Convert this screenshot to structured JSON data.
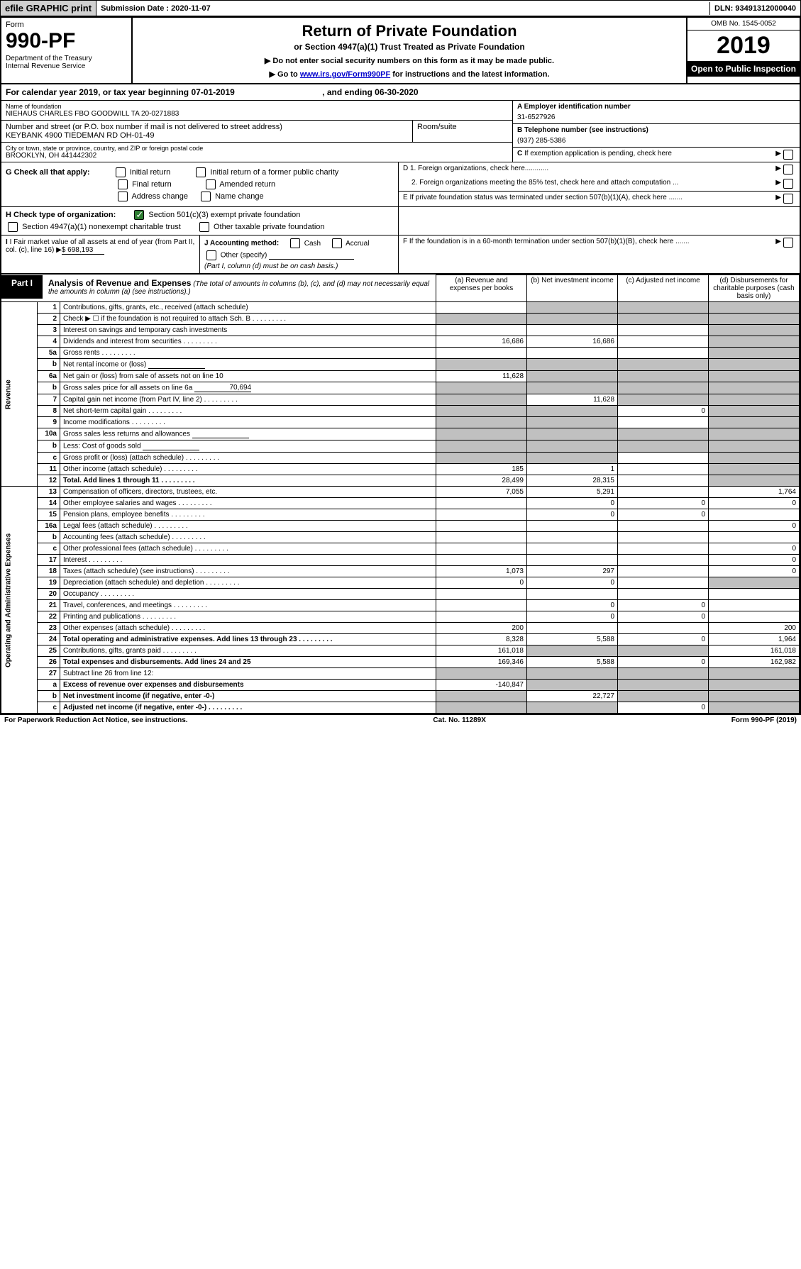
{
  "top": {
    "efile": "efile GRAPHIC print",
    "sub_label": "Submission Date : 2020-11-07",
    "dln": "DLN: 93491312000040"
  },
  "header": {
    "form_word": "Form",
    "form_no": "990-PF",
    "dept": "Department of the Treasury\nInternal Revenue Service",
    "title": "Return of Private Foundation",
    "subtitle": "or Section 4947(a)(1) Trust Treated as Private Foundation",
    "instr1": "▶ Do not enter social security numbers on this form as it may be made public.",
    "instr2_pre": "▶ Go to ",
    "instr2_link": "www.irs.gov/Form990PF",
    "instr2_post": " for instructions and the latest information.",
    "omb": "OMB No. 1545-0052",
    "year": "2019",
    "open": "Open to Public Inspection"
  },
  "cal": {
    "text": "For calendar year 2019, or tax year beginning 07-01-2019",
    "end": ", and ending 06-30-2020"
  },
  "info": {
    "name_label": "Name of foundation",
    "name": "NIEHAUS CHARLES FBO GOODWILL TA 20-0271883",
    "addr_label": "Number and street (or P.O. box number if mail is not delivered to street address)",
    "addr": "KEYBANK 4900 TIEDEMAN RD OH-01-49",
    "room_label": "Room/suite",
    "city_label": "City or town, state or province, country, and ZIP or foreign postal code",
    "city": "BROOKLYN, OH  441442302",
    "a_label": "A Employer identification number",
    "a_val": "31-6527926",
    "b_label": "B Telephone number (see instructions)",
    "b_val": "(937) 285-5386",
    "c_label": "C If exemption application is pending, check here"
  },
  "g": {
    "label": "G Check all that apply:",
    "opts": [
      "Initial return",
      "Initial return of a former public charity",
      "Final return",
      "Amended return",
      "Address change",
      "Name change"
    ]
  },
  "d": {
    "d1": "D 1. Foreign organizations, check here............",
    "d2": "2. Foreign organizations meeting the 85% test, check here and attach computation ...",
    "e": "E  If private foundation status was terminated under section 507(b)(1)(A), check here .......",
    "f": "F  If the foundation is in a 60-month termination under section 507(b)(1)(B), check here ......."
  },
  "h": {
    "label": "H Check type of organization:",
    "o1": "Section 501(c)(3) exempt private foundation",
    "o2": "Section 4947(a)(1) nonexempt charitable trust",
    "o3": "Other taxable private foundation"
  },
  "i": {
    "label": "I Fair market value of all assets at end of year (from Part II, col. (c), line 16)",
    "val": "$  698,193",
    "j_label": "J Accounting method:",
    "j_cash": "Cash",
    "j_accrual": "Accrual",
    "j_other": "Other (specify)",
    "j_note": "(Part I, column (d) must be on cash basis.)"
  },
  "part1": {
    "tag": "Part I",
    "title": "Analysis of Revenue and Expenses",
    "note": "(The total of amounts in columns (b), (c), and (d) may not necessarily equal the amounts in column (a) (see instructions).)",
    "cols": {
      "a": "(a)   Revenue and expenses per books",
      "b": "(b)  Net investment income",
      "c": "(c)  Adjusted net income",
      "d": "(d)  Disbursements for charitable purposes (cash basis only)"
    }
  },
  "rows": [
    {
      "n": "1",
      "d": "Contributions, gifts, grants, etc., received (attach schedule)",
      "a": "",
      "b": "grey",
      "c": "grey",
      "dd": "grey"
    },
    {
      "n": "2",
      "d": "Check ▶ ☐ if the foundation is not required to attach Sch. B",
      "a": "grey",
      "b": "grey",
      "c": "grey",
      "dd": "grey",
      "dots": true
    },
    {
      "n": "3",
      "d": "Interest on savings and temporary cash investments",
      "a": "",
      "b": "",
      "c": "",
      "dd": "grey"
    },
    {
      "n": "4",
      "d": "Dividends and interest from securities",
      "a": "16,686",
      "b": "16,686",
      "c": "",
      "dd": "grey",
      "dots": true
    },
    {
      "n": "5a",
      "d": "Gross rents",
      "a": "",
      "b": "",
      "c": "",
      "dd": "grey",
      "dots": true
    },
    {
      "n": "b",
      "d": "Net rental income or (loss)",
      "a": "grey",
      "b": "grey",
      "c": "grey",
      "dd": "grey",
      "inline": true
    },
    {
      "n": "6a",
      "d": "Net gain or (loss) from sale of assets not on line 10",
      "a": "11,628",
      "b": "grey",
      "c": "grey",
      "dd": "grey"
    },
    {
      "n": "b",
      "d": "Gross sales price for all assets on line 6a",
      "a": "grey",
      "b": "grey",
      "c": "grey",
      "dd": "grey",
      "inline": true,
      "ival": "70,694"
    },
    {
      "n": "7",
      "d": "Capital gain net income (from Part IV, line 2)",
      "a": "grey",
      "b": "11,628",
      "c": "grey",
      "dd": "grey",
      "dots": true
    },
    {
      "n": "8",
      "d": "Net short-term capital gain",
      "a": "grey",
      "b": "grey",
      "c": "0",
      "dd": "grey",
      "dots": true
    },
    {
      "n": "9",
      "d": "Income modifications",
      "a": "grey",
      "b": "grey",
      "c": "",
      "dd": "grey",
      "dots": true
    },
    {
      "n": "10a",
      "d": "Gross sales less returns and allowances",
      "a": "grey",
      "b": "grey",
      "c": "grey",
      "dd": "grey",
      "inline": true
    },
    {
      "n": "b",
      "d": "Less: Cost of goods sold",
      "a": "grey",
      "b": "grey",
      "c": "grey",
      "dd": "grey",
      "inline": true,
      "dots": true
    },
    {
      "n": "c",
      "d": "Gross profit or (loss) (attach schedule)",
      "a": "grey",
      "b": "grey",
      "c": "",
      "dd": "grey",
      "dots": true
    },
    {
      "n": "11",
      "d": "Other income (attach schedule)",
      "a": "185",
      "b": "1",
      "c": "",
      "dd": "grey",
      "dots": true
    },
    {
      "n": "12",
      "d": "Total. Add lines 1 through 11",
      "a": "28,499",
      "b": "28,315",
      "c": "",
      "dd": "grey",
      "bold": true,
      "dots": true
    }
  ],
  "exp_rows": [
    {
      "n": "13",
      "d": "Compensation of officers, directors, trustees, etc.",
      "a": "7,055",
      "b": "5,291",
      "c": "",
      "dd": "1,764"
    },
    {
      "n": "14",
      "d": "Other employee salaries and wages",
      "a": "",
      "b": "0",
      "c": "0",
      "dd": "0",
      "dots": true
    },
    {
      "n": "15",
      "d": "Pension plans, employee benefits",
      "a": "",
      "b": "0",
      "c": "0",
      "dd": "",
      "dots": true
    },
    {
      "n": "16a",
      "d": "Legal fees (attach schedule)",
      "a": "",
      "b": "",
      "c": "",
      "dd": "0",
      "dots": true
    },
    {
      "n": "b",
      "d": "Accounting fees (attach schedule)",
      "a": "",
      "b": "",
      "c": "",
      "dd": "",
      "dots": true
    },
    {
      "n": "c",
      "d": "Other professional fees (attach schedule)",
      "a": "",
      "b": "",
      "c": "",
      "dd": "0",
      "dots": true
    },
    {
      "n": "17",
      "d": "Interest",
      "a": "",
      "b": "",
      "c": "",
      "dd": "0",
      "dots": true
    },
    {
      "n": "18",
      "d": "Taxes (attach schedule) (see instructions)",
      "a": "1,073",
      "b": "297",
      "c": "",
      "dd": "0",
      "dots": true
    },
    {
      "n": "19",
      "d": "Depreciation (attach schedule) and depletion",
      "a": "0",
      "b": "0",
      "c": "",
      "dd": "grey",
      "dots": true
    },
    {
      "n": "20",
      "d": "Occupancy",
      "a": "",
      "b": "",
      "c": "",
      "dd": "",
      "dots": true
    },
    {
      "n": "21",
      "d": "Travel, conferences, and meetings",
      "a": "",
      "b": "0",
      "c": "0",
      "dd": "",
      "dots": true
    },
    {
      "n": "22",
      "d": "Printing and publications",
      "a": "",
      "b": "0",
      "c": "0",
      "dd": "",
      "dots": true
    },
    {
      "n": "23",
      "d": "Other expenses (attach schedule)",
      "a": "200",
      "b": "",
      "c": "",
      "dd": "200",
      "dots": true
    },
    {
      "n": "24",
      "d": "Total operating and administrative expenses. Add lines 13 through 23",
      "a": "8,328",
      "b": "5,588",
      "c": "0",
      "dd": "1,964",
      "bold": true,
      "dots": true
    },
    {
      "n": "25",
      "d": "Contributions, gifts, grants paid",
      "a": "161,018",
      "b": "grey",
      "c": "grey",
      "dd": "161,018",
      "dots": true
    },
    {
      "n": "26",
      "d": "Total expenses and disbursements. Add lines 24 and 25",
      "a": "169,346",
      "b": "5,588",
      "c": "0",
      "dd": "162,982",
      "bold": true
    },
    {
      "n": "27",
      "d": "Subtract line 26 from line 12:",
      "a": "grey",
      "b": "grey",
      "c": "grey",
      "dd": "grey"
    },
    {
      "n": "a",
      "d": "Excess of revenue over expenses and disbursements",
      "a": "-140,847",
      "b": "grey",
      "c": "grey",
      "dd": "grey",
      "bold": true
    },
    {
      "n": "b",
      "d": "Net investment income (if negative, enter -0-)",
      "a": "grey",
      "b": "22,727",
      "c": "grey",
      "dd": "grey",
      "bold": true
    },
    {
      "n": "c",
      "d": "Adjusted net income (if negative, enter -0-)",
      "a": "grey",
      "b": "grey",
      "c": "0",
      "dd": "grey",
      "bold": true,
      "dots": true
    }
  ],
  "sections": {
    "rev": "Revenue",
    "exp": "Operating and Administrative Expenses"
  },
  "footer": {
    "left": "For Paperwork Reduction Act Notice, see instructions.",
    "mid": "Cat. No. 11289X",
    "right": "Form 990-PF (2019)"
  }
}
